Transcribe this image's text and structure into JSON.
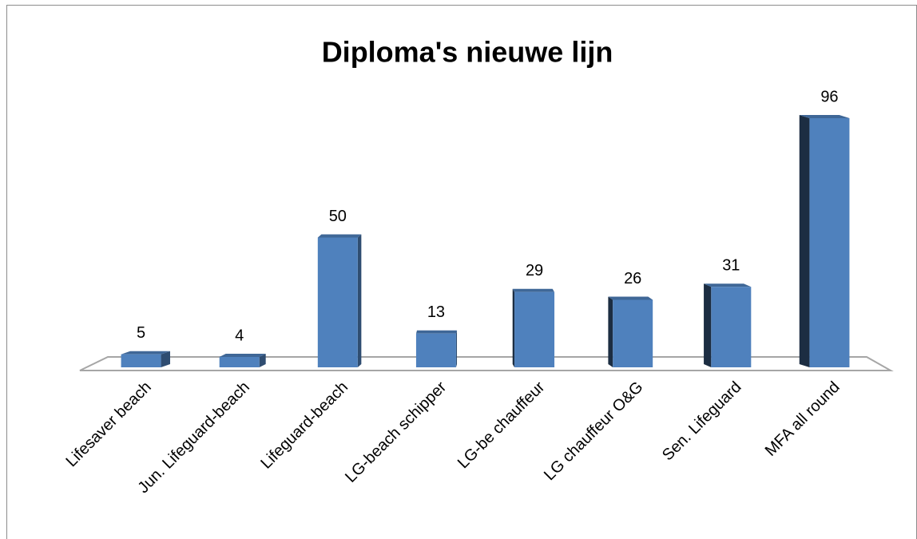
{
  "chart_data": {
    "type": "bar",
    "title": "Diploma's nieuwe lijn",
    "categories": [
      "Lifesaver beach",
      "Jun. Lifeguard-beach",
      "Lifeguard-beach",
      "LG-beach schipper",
      "LG-be chauffeur",
      "LG chauffeur O&G",
      "Sen. Lifeguard",
      "MFA all round"
    ],
    "values": [
      5,
      4,
      50,
      13,
      29,
      26,
      31,
      96
    ],
    "color": "#4f81bd"
  }
}
